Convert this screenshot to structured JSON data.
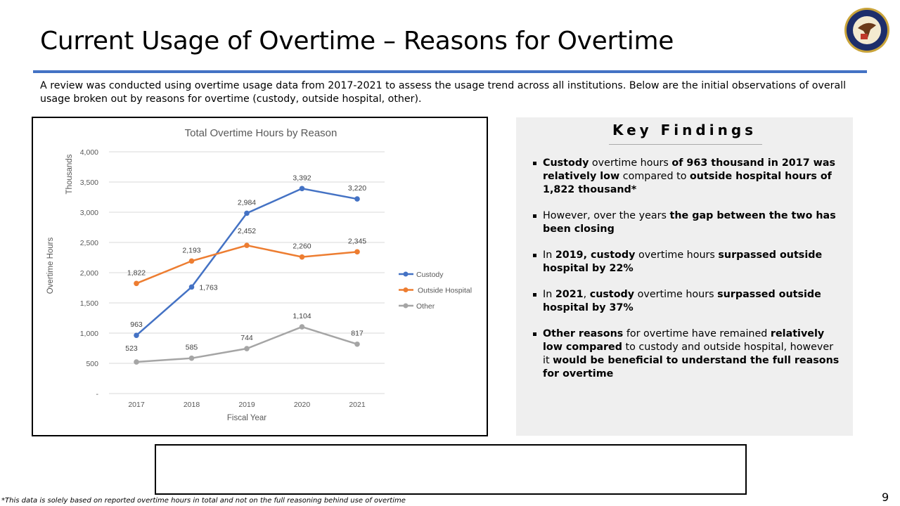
{
  "header": {
    "title": "Current Usage of Overtime – Reasons for Overtime",
    "logo_text": "DEPARTMENT OF JUSTICE · FEDERAL BUREAU OF PRISONS"
  },
  "intro": "A review was conducted using overtime usage data from 2017-2021 to assess the usage trend across all institutions. Below are the initial observations of overall usage broken out by reasons for overtime (custody, outside hospital, other).",
  "findings": {
    "title": "Key Findings",
    "items": [
      [
        {
          "t": "Custody",
          "b": true
        },
        {
          "t": " overtime hours ",
          "b": false
        },
        {
          "t": "of 963 thousand in 2017 was relatively low",
          "b": true
        },
        {
          "t": " compared to ",
          "b": false
        },
        {
          "t": "outside hospital hours of 1,822 thousand*",
          "b": true
        }
      ],
      [
        {
          "t": "However, over the years ",
          "b": false
        },
        {
          "t": "the gap between the two has been closing",
          "b": true
        }
      ],
      [
        {
          "t": "In ",
          "b": false
        },
        {
          "t": "2019, custody",
          "b": true
        },
        {
          "t": " overtime hours ",
          "b": false
        },
        {
          "t": "surpassed outside hospital by 22%",
          "b": true
        }
      ],
      [
        {
          "t": "In ",
          "b": false
        },
        {
          "t": "2021",
          "b": true
        },
        {
          "t": ", ",
          "b": false
        },
        {
          "t": "custody",
          "b": true
        },
        {
          "t": " overtime hours ",
          "b": false
        },
        {
          "t": "surpassed outside hospital by 37%",
          "b": true
        }
      ],
      [
        {
          "t": "Other reasons",
          "b": true
        },
        {
          "t": " for overtime have remained ",
          "b": false
        },
        {
          "t": "relatively low compared",
          "b": true
        },
        {
          "t": " to custody and outside hospital, however it ",
          "b": false
        },
        {
          "t": "would be beneficial to understand the full reasons for overtime",
          "b": true
        }
      ]
    ]
  },
  "footnote": "*This data is solely based on reported overtime hours in total and not on the full reasoning behind use of overtime",
  "page_number": "9",
  "chart_data": {
    "type": "line",
    "title": "Total Overtime Hours by Reason",
    "xlabel": "Fiscal Year",
    "ylabel": "Overtime Hours",
    "yunit_label": "Thousands",
    "categories": [
      "2017",
      "2018",
      "2019",
      "2020",
      "2021"
    ],
    "ylim": [
      0,
      4000
    ],
    "yticks": [
      0,
      500,
      1000,
      1500,
      2000,
      2500,
      3000,
      3500,
      4000
    ],
    "ytick_labels": [
      "-",
      "500",
      "1,000",
      "1,500",
      "2,000",
      "2,500",
      "3,000",
      "3,500",
      "4,000"
    ],
    "grid": true,
    "legend_position": "right",
    "series": [
      {
        "name": "Custody",
        "color": "#4472c4",
        "values": [
          963,
          1763,
          2984,
          3392,
          3220
        ],
        "labels": [
          "963",
          "1,763",
          "2,984",
          "3,392",
          "3,220"
        ]
      },
      {
        "name": "Outside Hospital",
        "color": "#ed7d31",
        "values": [
          1822,
          2193,
          2452,
          2260,
          2345
        ],
        "labels": [
          "1,822",
          "2,193",
          "2,452",
          "2,260",
          "2,345"
        ]
      },
      {
        "name": "Other",
        "color": "#a5a5a5",
        "values": [
          523,
          585,
          744,
          1104,
          817
        ],
        "labels": [
          "523",
          "585",
          "744",
          "1,104",
          "817"
        ]
      }
    ]
  }
}
